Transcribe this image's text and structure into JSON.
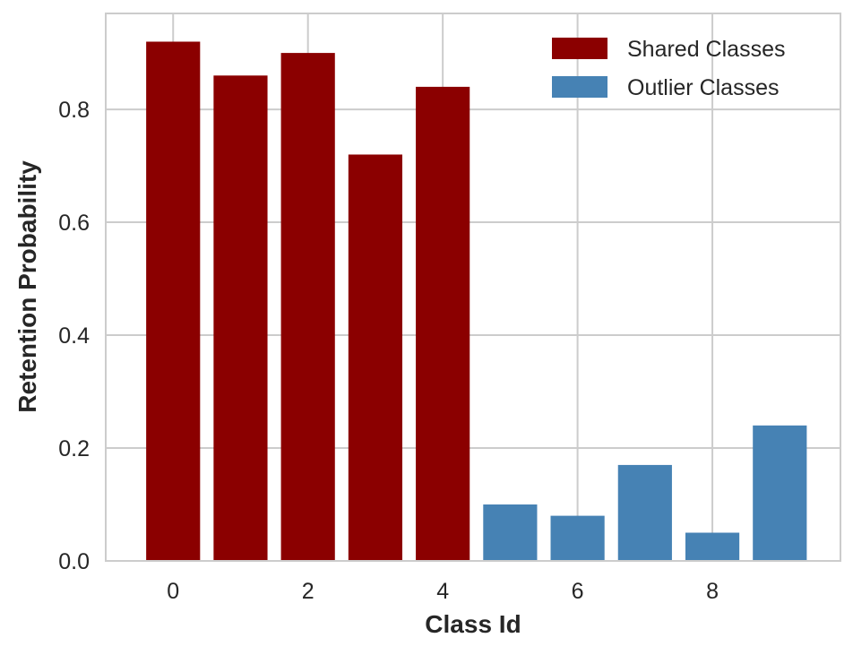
{
  "chart_data": {
    "type": "bar",
    "xlabel": "Class Id",
    "ylabel": "Retention Probability",
    "xlim": [
      -1.0,
      9.9
    ],
    "ylim": [
      0.0,
      0.97
    ],
    "xticks": [
      0,
      2,
      4,
      6,
      8
    ],
    "yticks": [
      0.0,
      0.2,
      0.4,
      0.6,
      0.8
    ],
    "grid": true,
    "legend_position": "top-right",
    "series": [
      {
        "name": "Shared Classes",
        "color": "#8b0000",
        "x": [
          0,
          1,
          2,
          3,
          4
        ],
        "values": [
          0.92,
          0.86,
          0.9,
          0.72,
          0.84
        ]
      },
      {
        "name": "Outlier Classes",
        "color": "#4682b4",
        "x": [
          5,
          6,
          7,
          8,
          9
        ],
        "values": [
          0.1,
          0.08,
          0.17,
          0.05,
          0.24
        ]
      }
    ]
  }
}
